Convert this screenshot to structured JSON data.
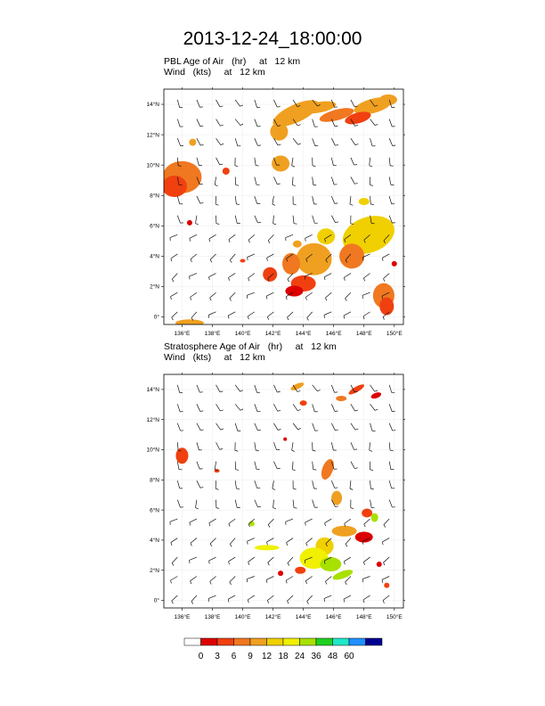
{
  "title": "2013-12-24_18:00:00",
  "panels": [
    {
      "id": "pbl",
      "line1": "PBL Age of Air   (hr)     at   12 km",
      "line2": "Wind   (kts)     at   12 km"
    },
    {
      "id": "strat",
      "line1": "Stratosphere Age of Air   (hr)     at   12 km",
      "line2": "Wind   (kts)     at   12 km"
    }
  ],
  "axes": {
    "lon_ticks": [
      "136°E",
      "138°E",
      "140°E",
      "142°E",
      "144°E",
      "146°E",
      "148°E",
      "150°E"
    ],
    "lat_ticks": [
      "0°",
      "2°N",
      "4°N",
      "6°N",
      "8°N",
      "10°N",
      "12°N",
      "14°N"
    ],
    "lon_range": [
      134.8,
      150.6
    ],
    "lat_range": [
      -0.5,
      15.0
    ]
  },
  "colorbar": {
    "labels": [
      "0",
      "3",
      "6",
      "9",
      "12",
      "18",
      "24",
      "36",
      "48",
      "60"
    ],
    "colors": [
      "#ffffff",
      "#dd0000",
      "#f04010",
      "#f07820",
      "#f0a020",
      "#f0d000",
      "#f0f000",
      "#a8e000",
      "#20d020",
      "#20e8c8",
      "#2090ff",
      "#000090"
    ]
  }
}
